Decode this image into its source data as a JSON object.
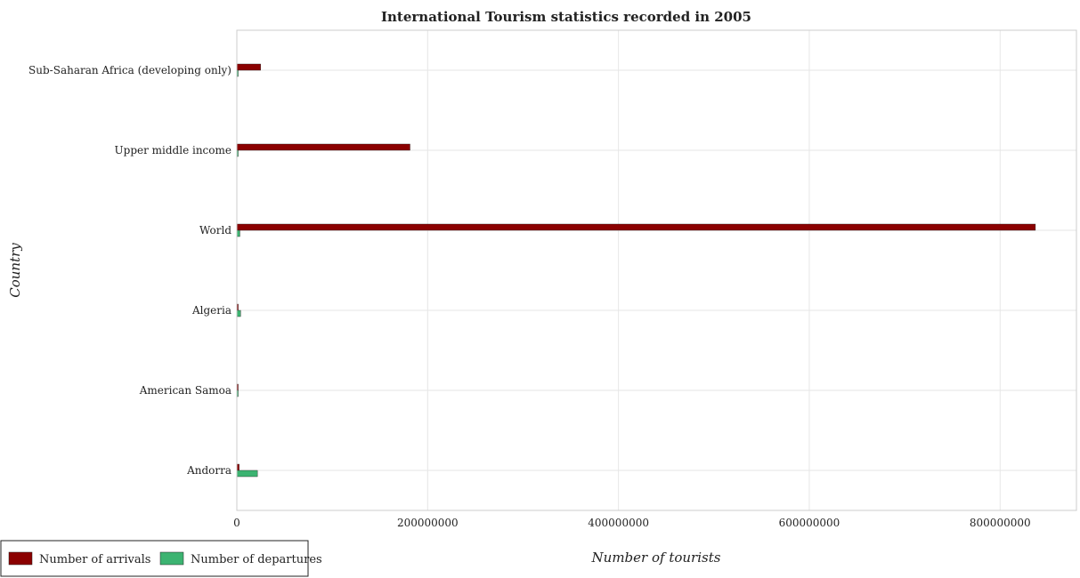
{
  "chart_data": {
    "type": "bar",
    "orientation": "horizontal",
    "title": "International Tourism statistics recorded in 2005",
    "xlabel": "Number of tourists",
    "ylabel": "Country",
    "xlim": [
      0,
      880000000
    ],
    "xticks": [
      0,
      200000000,
      400000000,
      600000000,
      800000000
    ],
    "xtick_labels": [
      "0",
      "200000000",
      "400000000",
      "600000000",
      "800000000"
    ],
    "categories": [
      "Sub-Saharan Africa (developing only)",
      "Upper middle income",
      "World",
      "Algeria",
      "American Samoa",
      "Andorra"
    ],
    "series": [
      {
        "name": "Number of arrivals",
        "color": "#8b0000",
        "values": [
          24900000,
          181500000,
          837000000,
          1440000,
          25000,
          2418000
        ]
      },
      {
        "name": "Number of departures",
        "color": "#3cb371",
        "values": [
          400000,
          600000,
          3200000,
          4000000,
          700000,
          21600000
        ]
      }
    ],
    "grid": true,
    "legend_position": "bottom-left"
  }
}
